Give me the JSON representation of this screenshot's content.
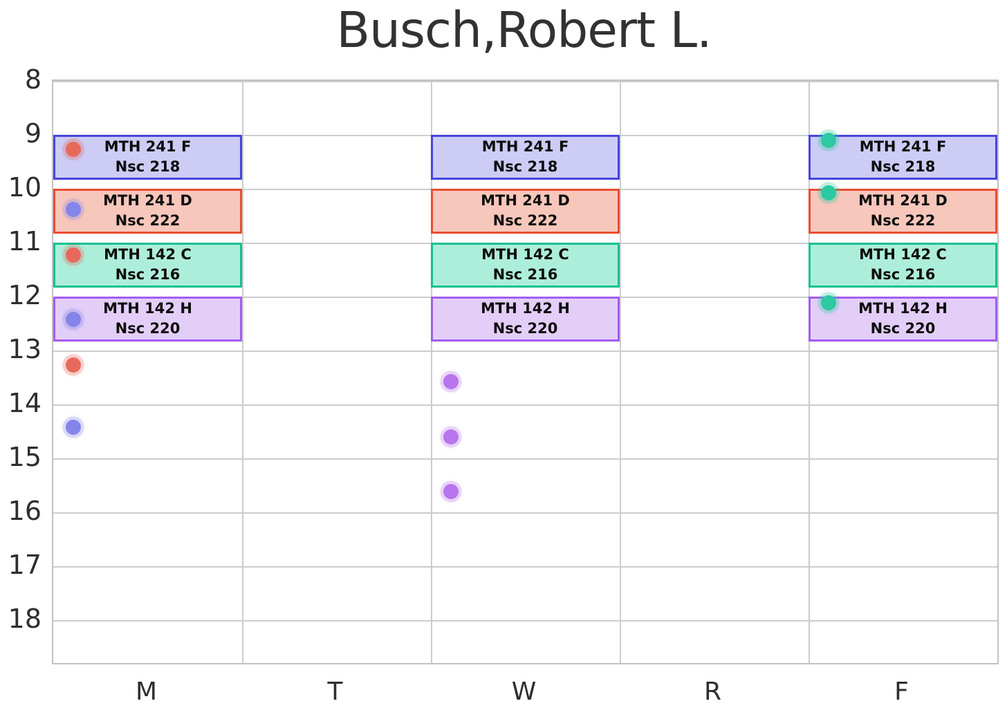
{
  "title": "Busch,Robert L.",
  "colors": {
    "grid": "#cccccc",
    "spine": "#c2c2c2",
    "tick_text": "#2e2e2e",
    "block_text": "#0d0d0d",
    "title_text": "#323232"
  },
  "chart_data": {
    "type": "schedule",
    "title": "Busch,Robert L.",
    "xlabel": "",
    "ylabel": "",
    "x_axis": {
      "categories": [
        "M",
        "T",
        "W",
        "R",
        "F"
      ]
    },
    "y_axis": {
      "unit": "hour",
      "ticks": [
        8,
        9,
        10,
        11,
        12,
        13,
        14,
        15,
        16,
        17,
        18
      ],
      "range": [
        8,
        18.8
      ],
      "direction": "down"
    },
    "grid": true,
    "blocks": [
      {
        "course": "MTH 241 F",
        "room": "Nsc 218",
        "days": [
          "M",
          "W",
          "F"
        ],
        "start": 9.0,
        "end": 9.833,
        "fill": "#ccccf5",
        "border": "#4545de"
      },
      {
        "course": "MTH 241 D",
        "room": "Nsc 222",
        "days": [
          "M",
          "W",
          "F"
        ],
        "start": 10.0,
        "end": 10.833,
        "fill": "#f7c7bc",
        "border": "#eb4c30"
      },
      {
        "course": "MTH 142 C",
        "room": "Nsc 216",
        "days": [
          "M",
          "W",
          "F"
        ],
        "start": 11.0,
        "end": 11.833,
        "fill": "#adeeda",
        "border": "#10c090"
      },
      {
        "course": "MTH 142 H",
        "room": "Nsc 220",
        "days": [
          "M",
          "W",
          "F"
        ],
        "start": 12.0,
        "end": 12.833,
        "fill": "#e3cef8",
        "border": "#a25cee"
      }
    ],
    "points": [
      {
        "day": "M",
        "time": 9.27,
        "color": "#e7695b",
        "color_name": "red"
      },
      {
        "day": "M",
        "time": 10.39,
        "color": "#8584e9",
        "color_name": "blue"
      },
      {
        "day": "M",
        "time": 11.23,
        "color": "#e7695b",
        "color_name": "red"
      },
      {
        "day": "M",
        "time": 12.43,
        "color": "#8584e9",
        "color_name": "blue"
      },
      {
        "day": "M",
        "time": 13.27,
        "color": "#e7695b",
        "color_name": "red"
      },
      {
        "day": "M",
        "time": 14.42,
        "color": "#8584e9",
        "color_name": "blue"
      },
      {
        "day": "W",
        "time": 13.58,
        "color": "#b875ec",
        "color_name": "purple"
      },
      {
        "day": "W",
        "time": 14.6,
        "color": "#b875ec",
        "color_name": "purple"
      },
      {
        "day": "W",
        "time": 15.62,
        "color": "#b875ec",
        "color_name": "purple"
      },
      {
        "day": "F",
        "time": 9.1,
        "color": "#2dc9a2",
        "color_name": "teal"
      },
      {
        "day": "F",
        "time": 10.08,
        "color": "#2dc9a2",
        "color_name": "teal"
      },
      {
        "day": "F",
        "time": 12.12,
        "color": "#2dc9a2",
        "color_name": "teal"
      }
    ]
  }
}
